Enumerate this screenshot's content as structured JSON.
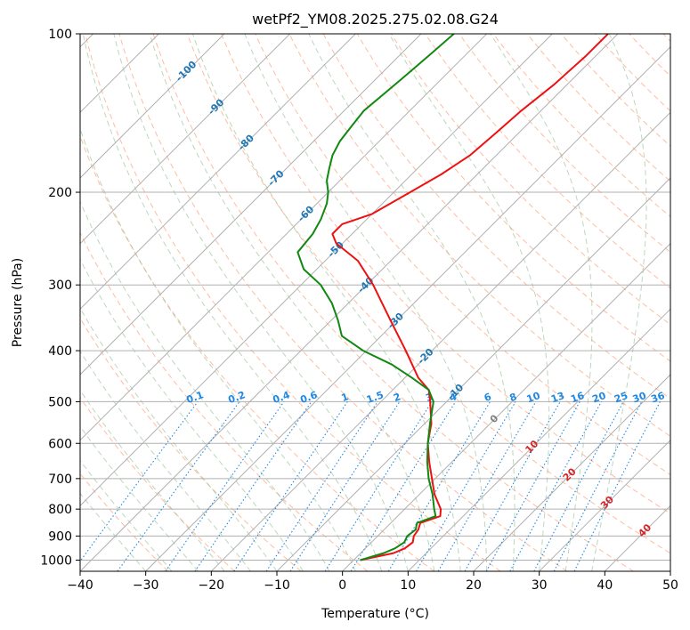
{
  "chart_data": {
    "type": "line",
    "title": "wetPf2_YM08.2025.275.02.08.G24",
    "xlabel": "Temperature (°C)",
    "ylabel": "Pressure (hPa)",
    "xlim": [
      -40,
      50
    ],
    "ylim": [
      1050,
      100
    ],
    "x_ticks": [
      -40,
      -30,
      -20,
      -10,
      0,
      10,
      20,
      30,
      40,
      50
    ],
    "y_ticks": [
      100,
      200,
      300,
      400,
      500,
      600,
      700,
      800,
      900,
      1000
    ],
    "skew_factor": 1,
    "series": [
      {
        "name": "Temperature",
        "color": "#ee1111",
        "pressure": [
          1000,
          970,
          950,
          925,
          900,
          875,
          850,
          825,
          800,
          750,
          700,
          650,
          600,
          550,
          500,
          475,
          450,
          400,
          350,
          300,
          270,
          250,
          240,
          230,
          220,
          200,
          185,
          170,
          155,
          140,
          125,
          110,
          100
        ],
        "temperature": [
          1.0,
          5.0,
          6.0,
          6.3,
          5.5,
          5.2,
          4.5,
          6.5,
          5.5,
          2.3,
          -0.5,
          -3.5,
          -6.5,
          -9.0,
          -12.5,
          -14.5,
          -18.0,
          -24.0,
          -31.0,
          -39.0,
          -45.0,
          -51.0,
          -53.0,
          -53.0,
          -50.0,
          -47.5,
          -45.5,
          -44.0,
          -43.5,
          -43.0,
          -42.0,
          -41.5,
          -41.5
        ]
      },
      {
        "name": "Dewpoint",
        "color": "#118811",
        "pressure": [
          1000,
          970,
          950,
          925,
          900,
          875,
          850,
          825,
          800,
          750,
          700,
          650,
          600,
          550,
          500,
          475,
          450,
          425,
          400,
          375,
          350,
          325,
          300,
          280,
          260,
          240,
          225,
          210,
          200,
          190,
          180,
          170,
          160,
          150,
          140,
          130,
          120,
          110,
          100
        ],
        "temperature": [
          1.0,
          3.5,
          4.5,
          5.0,
          4.5,
          4.8,
          4.0,
          5.8,
          4.5,
          2.0,
          -1.0,
          -3.8,
          -6.5,
          -9.2,
          -12.0,
          -14.5,
          -19.0,
          -24.0,
          -30.5,
          -36.0,
          -39.0,
          -42.5,
          -47.0,
          -52.0,
          -55.5,
          -56.0,
          -57.0,
          -58.5,
          -60.0,
          -62.0,
          -63.5,
          -65.0,
          -66.0,
          -66.5,
          -67.0,
          -66.5,
          -66.0,
          -65.5,
          -65.0
        ]
      }
    ],
    "isotherm_labels": [
      -100,
      -90,
      -80,
      -70,
      -60,
      -50,
      -40,
      -30,
      -20,
      -10,
      0,
      10,
      20,
      30,
      40
    ],
    "mixing_ratio_labels": [
      "0.1",
      "0.2",
      "0.4",
      "0.6",
      "1",
      "1.5",
      "2",
      "3",
      "4",
      "6",
      "8",
      "10",
      "13",
      "16",
      "20",
      "25",
      "30",
      "36"
    ],
    "mixing_ratio_values": [
      0.1,
      0.2,
      0.4,
      0.6,
      1,
      1.5,
      2,
      3,
      4,
      6,
      8,
      10,
      13,
      16,
      20,
      25,
      30,
      36
    ],
    "colors": {
      "isotherm_cold": "#1f77b4",
      "isotherm_zero": "#808080",
      "isotherm_warm": "#d62728",
      "mixing_ratio": "#1e88e5",
      "dry_adiabat": "#ffa07a",
      "moist_adiabat": "#8fbc8f",
      "grid": "#b0b0b0"
    }
  }
}
